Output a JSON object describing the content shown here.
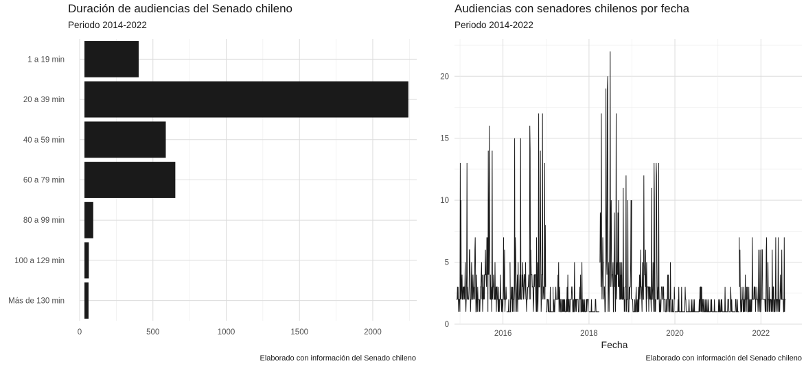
{
  "left": {
    "title": "Duración de audiencias del Senado chileno",
    "subtitle": "Periodo 2014-2022",
    "caption": "Elaborado con información del Senado chileno"
  },
  "right": {
    "title": "Audiencias con senadores chilenos por fecha",
    "subtitle": "Periodo 2014-2022",
    "caption": "Elaborado con información del Senado chileno"
  },
  "chart_data": [
    {
      "type": "bar",
      "orientation": "horizontal",
      "title": "Duración de audiencias del Senado chileno",
      "subtitle": "Periodo 2014-2022",
      "caption": "Elaborado con información del Senado chileno",
      "categories": [
        "1 a 19 min",
        "20 a 39 min",
        "40 a 59 min",
        "60 a 79 min",
        "80 a 99 min",
        "100 a 129 min",
        "Más de 130 min"
      ],
      "values": [
        370,
        2210,
        555,
        620,
        60,
        30,
        28
      ],
      "xlim": [
        0,
        2300
      ],
      "xticks": [
        0,
        500,
        1000,
        1500,
        2000
      ],
      "xlabel": "",
      "ylabel": "",
      "grid": true,
      "bar_color": "#1a1a1a"
    },
    {
      "type": "line",
      "title": "Audiencias con senadores chilenos por fecha",
      "subtitle": "Periodo 2014-2022",
      "caption": "Elaborado con información del Senado chileno",
      "xlabel": "Fecha",
      "ylabel": "",
      "xlim": [
        "2014-11-15",
        "2022-12-15"
      ],
      "ylim": [
        0,
        23
      ],
      "xticks": [
        "2016",
        "2018",
        "2020",
        "2022"
      ],
      "yticks": [
        0,
        5,
        10,
        15,
        20
      ],
      "grid": true,
      "line_color": "#1a1a1a",
      "segments": [
        {
          "start": "2014-12-01",
          "end": "2015-04-30",
          "min": 1,
          "max": 13
        },
        {
          "start": "2015-05-01",
          "end": "2015-11-30",
          "min": 1,
          "max": 16
        },
        {
          "start": "2015-12-01",
          "end": "2016-01-31",
          "min": 1,
          "max": 7
        },
        {
          "start": "2016-02-01",
          "end": "2016-02-28",
          "min": 1,
          "max": 2
        },
        {
          "start": "2016-03-01",
          "end": "2016-07-31",
          "min": 1,
          "max": 15
        },
        {
          "start": "2016-08-01",
          "end": "2016-12-31",
          "min": 1,
          "max": 17
        },
        {
          "start": "2017-01-01",
          "end": "2017-02-28",
          "min": 1,
          "max": 3
        },
        {
          "start": "2017-03-01",
          "end": "2017-12-31",
          "min": 1,
          "max": 5
        },
        {
          "start": "2018-01-01",
          "end": "2018-03-31",
          "min": 1,
          "max": 2
        },
        {
          "start": "2018-04-01",
          "end": "2018-08-31",
          "min": 1,
          "max": 22
        },
        {
          "start": "2018-09-01",
          "end": "2018-12-31",
          "min": 1,
          "max": 12
        },
        {
          "start": "2019-01-01",
          "end": "2019-02-28",
          "min": 1,
          "max": 3
        },
        {
          "start": "2019-03-01",
          "end": "2019-09-30",
          "min": 1,
          "max": 13
        },
        {
          "start": "2019-10-01",
          "end": "2019-12-31",
          "min": 1,
          "max": 5
        },
        {
          "start": "2020-01-01",
          "end": "2020-12-31",
          "min": 1,
          "max": 3
        },
        {
          "start": "2021-01-01",
          "end": "2021-06-30",
          "min": 1,
          "max": 3
        },
        {
          "start": "2021-07-01",
          "end": "2021-12-31",
          "min": 1,
          "max": 7
        },
        {
          "start": "2022-01-01",
          "end": "2022-07-31",
          "min": 1,
          "max": 7
        }
      ]
    }
  ]
}
